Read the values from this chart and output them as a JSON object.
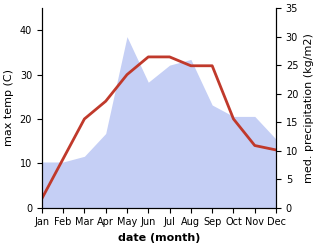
{
  "months": [
    "Jan",
    "Feb",
    "Mar",
    "Apr",
    "May",
    "Jun",
    "Jul",
    "Aug",
    "Sep",
    "Oct",
    "Nov",
    "Dec"
  ],
  "month_indices": [
    1,
    2,
    3,
    4,
    5,
    6,
    7,
    8,
    9,
    10,
    11,
    12
  ],
  "temperature": [
    2,
    11,
    20,
    24,
    30,
    34,
    34,
    32,
    32,
    20,
    14,
    13
  ],
  "precipitation": [
    8,
    8,
    9,
    13,
    30,
    22,
    25,
    26,
    18,
    16,
    16,
    12
  ],
  "temp_color": "#c0392b",
  "precip_fill_color": "#c5cff5",
  "ylabel_left": "max temp (C)",
  "ylabel_right": "med. precipitation (kg/m2)",
  "xlabel": "date (month)",
  "ylim_left": [
    0,
    45
  ],
  "ylim_right": [
    0,
    35
  ],
  "yticks_left": [
    0,
    10,
    20,
    30,
    40
  ],
  "yticks_right": [
    0,
    5,
    10,
    15,
    20,
    25,
    30,
    35
  ],
  "label_fontsize": 8,
  "tick_fontsize": 7,
  "line_width": 2.0,
  "background_color": "#ffffff"
}
